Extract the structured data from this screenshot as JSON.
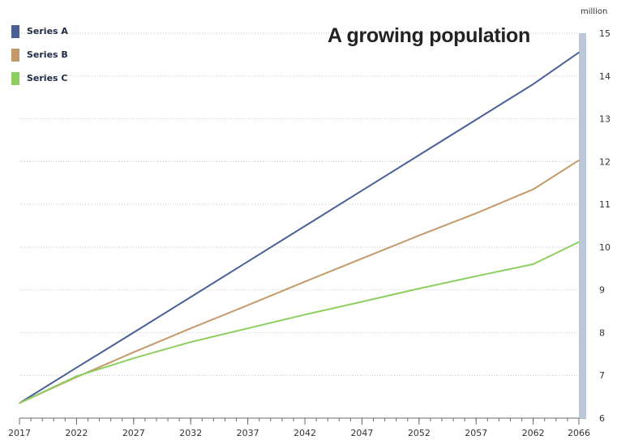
{
  "chart_data": {
    "type": "line",
    "title": "A growing population",
    "unit": "million",
    "x": [
      2017,
      2022,
      2027,
      2032,
      2037,
      2042,
      2047,
      2052,
      2057,
      2062,
      2066
    ],
    "x_ticks": [
      "2017",
      "2022",
      "2027",
      "2032",
      "2037",
      "2042",
      "2047",
      "2052",
      "2057",
      "2062",
      "2066"
    ],
    "xlim": [
      2017,
      2066
    ],
    "ylim": [
      6,
      15
    ],
    "y_ticks": [
      "6",
      "7",
      "8",
      "9",
      "10",
      "11",
      "12",
      "13",
      "14",
      "15"
    ],
    "grid": true,
    "legend_position": "top-left",
    "series": [
      {
        "name": "Series A",
        "color": "#4a5f96",
        "values": [
          6.35,
          7.18,
          8.0,
          8.83,
          9.66,
          10.49,
          11.32,
          12.15,
          12.98,
          13.81,
          14.55
        ]
      },
      {
        "name": "Series B",
        "color": "#c4996a",
        "values": [
          6.35,
          6.96,
          7.54,
          8.1,
          8.64,
          9.19,
          9.73,
          10.27,
          10.79,
          11.35,
          12.03
        ]
      },
      {
        "name": "Series C",
        "color": "#8dcf5e",
        "values": [
          6.35,
          6.98,
          7.4,
          7.78,
          8.1,
          8.42,
          8.72,
          9.03,
          9.32,
          9.6,
          10.12
        ]
      }
    ]
  }
}
